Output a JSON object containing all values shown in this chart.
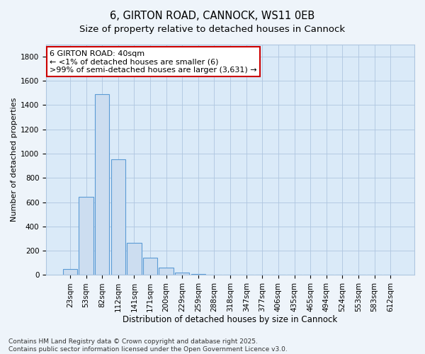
{
  "title": "6, GIRTON ROAD, CANNOCK, WS11 0EB",
  "subtitle": "Size of property relative to detached houses in Cannock",
  "xlabel": "Distribution of detached houses by size in Cannock",
  "ylabel": "Number of detached properties",
  "categories": [
    "23sqm",
    "53sqm",
    "82sqm",
    "112sqm",
    "141sqm",
    "171sqm",
    "200sqm",
    "229sqm",
    "259sqm",
    "288sqm",
    "318sqm",
    "347sqm",
    "377sqm",
    "406sqm",
    "435sqm",
    "465sqm",
    "494sqm",
    "524sqm",
    "553sqm",
    "583sqm",
    "612sqm"
  ],
  "values": [
    50,
    645,
    1490,
    955,
    265,
    145,
    60,
    20,
    10,
    5,
    0,
    0,
    0,
    0,
    0,
    0,
    0,
    0,
    0,
    0,
    0
  ],
  "bar_color": "#ccddf0",
  "bar_edge_color": "#5b9bd5",
  "annotation_box_text": "6 GIRTON ROAD: 40sqm\n← <1% of detached houses are smaller (6)\n>99% of semi-detached houses are larger (3,631) →",
  "annotation_box_color": "#cc0000",
  "annotation_fill_color": "#ffffff",
  "ylim": [
    0,
    1900
  ],
  "yticks": [
    0,
    200,
    400,
    600,
    800,
    1000,
    1200,
    1400,
    1600,
    1800
  ],
  "grid_color": "#aec6e0",
  "plot_bg_color": "#daeaf8",
  "fig_bg_color": "#eef4fa",
  "footer_text": "Contains HM Land Registry data © Crown copyright and database right 2025.\nContains public sector information licensed under the Open Government Licence v3.0.",
  "title_fontsize": 10.5,
  "subtitle_fontsize": 9.5,
  "xlabel_fontsize": 8.5,
  "ylabel_fontsize": 8,
  "tick_fontsize": 7.5,
  "footer_fontsize": 6.5,
  "annotation_fontsize": 8
}
